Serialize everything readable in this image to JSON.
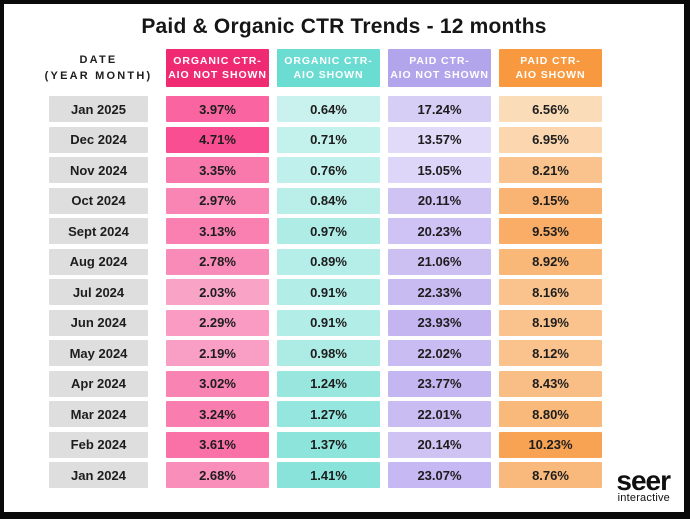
{
  "page": {
    "title": "Paid & Organic CTR Trends - 12 months",
    "background_color": "#ffffff",
    "border_color": "#0a0a0a"
  },
  "table": {
    "date_header": {
      "line1": "DATE",
      "line2": "(YEAR MONTH)"
    },
    "row_label_bg": "#dedede",
    "columns": [
      {
        "key": "organic_not_shown",
        "line1": "ORGANIC CTR-",
        "line2": "AIO NOT SHOWN",
        "header_bg": "#f02a72",
        "scale_light": "#f9a3c7",
        "scale_dark": "#fa4e92"
      },
      {
        "key": "organic_shown",
        "line1": "ORGANIC CTR-",
        "line2": "AIO SHOWN",
        "header_bg": "#6bdcd2",
        "scale_light": "#c9f2ee",
        "scale_dark": "#8ae3da"
      },
      {
        "key": "paid_not_shown",
        "line1": "PAID CTR-",
        "line2": "AIO NOT SHOWN",
        "header_bg": "#b2a5eb",
        "scale_light": "#e1dbf9",
        "scale_dark": "#c4b5f1"
      },
      {
        "key": "paid_shown",
        "line1": "PAID CTR-",
        "line2": "AIO SHOWN",
        "header_bg": "#f8993f",
        "scale_light": "#fbdcb9",
        "scale_dark": "#f8a254"
      }
    ],
    "rows": [
      {
        "date": "Jan 2025",
        "organic_not_shown": "3.97%",
        "organic_shown": "0.64%",
        "paid_not_shown": "17.24%",
        "paid_shown": "6.56%"
      },
      {
        "date": "Dec 2024",
        "organic_not_shown": "4.71%",
        "organic_shown": "0.71%",
        "paid_not_shown": "13.57%",
        "paid_shown": "6.95%"
      },
      {
        "date": "Nov 2024",
        "organic_not_shown": "3.35%",
        "organic_shown": "0.76%",
        "paid_not_shown": "15.05%",
        "paid_shown": "8.21%"
      },
      {
        "date": "Oct 2024",
        "organic_not_shown": "2.97%",
        "organic_shown": "0.84%",
        "paid_not_shown": "20.11%",
        "paid_shown": "9.15%"
      },
      {
        "date": "Sept 2024",
        "organic_not_shown": "3.13%",
        "organic_shown": "0.97%",
        "paid_not_shown": "20.23%",
        "paid_shown": "9.53%"
      },
      {
        "date": "Aug 2024",
        "organic_not_shown": "2.78%",
        "organic_shown": "0.89%",
        "paid_not_shown": "21.06%",
        "paid_shown": "8.92%"
      },
      {
        "date": "Jul 2024",
        "organic_not_shown": "2.03%",
        "organic_shown": "0.91%",
        "paid_not_shown": "22.33%",
        "paid_shown": "8.16%"
      },
      {
        "date": "Jun 2024",
        "organic_not_shown": "2.29%",
        "organic_shown": "0.91%",
        "paid_not_shown": "23.93%",
        "paid_shown": "8.19%"
      },
      {
        "date": "May 2024",
        "organic_not_shown": "2.19%",
        "organic_shown": "0.98%",
        "paid_not_shown": "22.02%",
        "paid_shown": "8.12%"
      },
      {
        "date": "Apr 2024",
        "organic_not_shown": "3.02%",
        "organic_shown": "1.24%",
        "paid_not_shown": "23.77%",
        "paid_shown": "8.43%"
      },
      {
        "date": "Mar 2024",
        "organic_not_shown": "3.24%",
        "organic_shown": "1.27%",
        "paid_not_shown": "22.01%",
        "paid_shown": "8.80%"
      },
      {
        "date": "Feb 2024",
        "organic_not_shown": "3.61%",
        "organic_shown": "1.37%",
        "paid_not_shown": "20.14%",
        "paid_shown": "10.23%"
      },
      {
        "date": "Jan 2024",
        "organic_not_shown": "2.68%",
        "organic_shown": "1.41%",
        "paid_not_shown": "23.07%",
        "paid_shown": "8.76%"
      }
    ]
  },
  "logo": {
    "name": "seer",
    "sub": "interactive"
  },
  "chart_data": {
    "type": "table",
    "title": "Paid & Organic CTR Trends - 12 months",
    "unit": "%",
    "categories": [
      "Jan 2025",
      "Dec 2024",
      "Nov 2024",
      "Oct 2024",
      "Sept 2024",
      "Aug 2024",
      "Jul 2024",
      "Jun 2024",
      "May 2024",
      "Apr 2024",
      "Mar 2024",
      "Feb 2024",
      "Jan 2024"
    ],
    "series": [
      {
        "name": "Organic CTR - AIO Not Shown",
        "values": [
          3.97,
          4.71,
          3.35,
          2.97,
          3.13,
          2.78,
          2.03,
          2.29,
          2.19,
          3.02,
          3.24,
          3.61,
          2.68
        ]
      },
      {
        "name": "Organic CTR - AIO Shown",
        "values": [
          0.64,
          0.71,
          0.76,
          0.84,
          0.97,
          0.89,
          0.91,
          0.91,
          0.98,
          1.24,
          1.27,
          1.37,
          1.41
        ]
      },
      {
        "name": "Paid CTR - AIO Not Shown",
        "values": [
          17.24,
          13.57,
          15.05,
          20.11,
          20.23,
          21.06,
          22.33,
          23.93,
          22.02,
          23.77,
          22.01,
          20.14,
          23.07
        ]
      },
      {
        "name": "Paid CTR - AIO Shown",
        "values": [
          6.56,
          6.95,
          8.21,
          9.15,
          9.53,
          8.92,
          8.16,
          8.19,
          8.12,
          8.43,
          8.8,
          10.23,
          8.76
        ]
      }
    ],
    "layout": {
      "heatmap_per_column": true,
      "grid": false,
      "legend_position": "column-headers"
    }
  }
}
